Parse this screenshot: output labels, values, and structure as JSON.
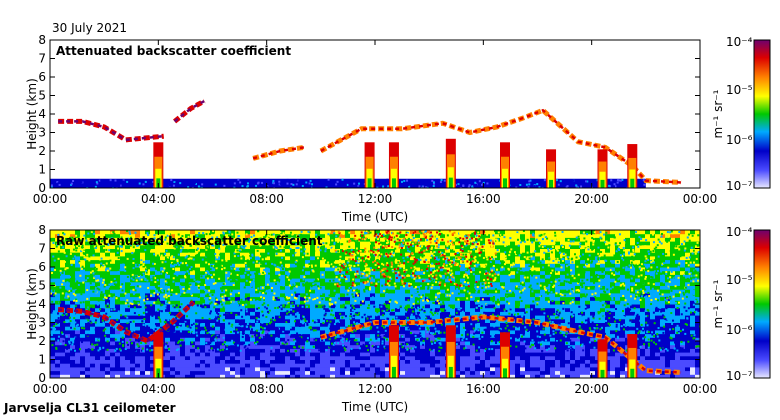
{
  "date": "30 July 2021",
  "footer": "Jarvselja CL31 ceilometer",
  "chart_data": [
    {
      "type": "heatmap",
      "title": "Attenuated backscatter coefficient",
      "xlabel": "Time (UTC)",
      "ylabel": "Height (km)",
      "xlim": [
        0,
        24
      ],
      "ylim": [
        0,
        8
      ],
      "xticks": [
        "00:00",
        "04:00",
        "08:00",
        "12:00",
        "16:00",
        "20:00",
        "00:00"
      ],
      "yticks": [
        "0",
        "1",
        "2",
        "3",
        "4",
        "5",
        "6",
        "7",
        "8"
      ],
      "colorbar": {
        "scale": "log",
        "range": [
          1e-07,
          0.0001
        ],
        "unit": "m⁻¹ sr⁻¹",
        "labels": [
          "10⁻⁴",
          "10⁻⁵",
          "10⁻⁶",
          "10⁻⁷"
        ]
      },
      "layers": [
        {
          "name": "boundary-layer",
          "kind": "band",
          "x": [
            0,
            22
          ],
          "height": [
            0,
            0.5
          ],
          "level": 2
        },
        {
          "name": "cloud-layer-early",
          "kind": "layer",
          "points": [
            [
              0.3,
              3.6
            ],
            [
              1.2,
              3.6
            ],
            [
              2.0,
              3.3
            ],
            [
              2.8,
              2.6
            ],
            [
              3.5,
              2.7
            ],
            [
              4.2,
              2.8
            ]
          ],
          "level": 8
        },
        {
          "name": "cloud-layer-midmorning",
          "kind": "layer",
          "points": [
            [
              4.6,
              3.6
            ],
            [
              5.2,
              4.3
            ],
            [
              5.7,
              4.7
            ]
          ],
          "level": 8
        },
        {
          "name": "cloud-layer-morning",
          "kind": "layer",
          "points": [
            [
              7.5,
              1.6
            ],
            [
              8.5,
              2.0
            ],
            [
              9.4,
              2.2
            ]
          ],
          "level": 7
        },
        {
          "name": "cloud-layer-afternoon",
          "kind": "layer",
          "points": [
            [
              10.0,
              2.0
            ],
            [
              11.5,
              3.2
            ],
            [
              13.0,
              3.2
            ],
            [
              14.5,
              3.5
            ],
            [
              15.5,
              3.0
            ],
            [
              16.5,
              3.3
            ],
            [
              17.5,
              3.8
            ],
            [
              18.2,
              4.2
            ],
            [
              19.5,
              2.5
            ],
            [
              20.5,
              2.2
            ],
            [
              21.5,
              1.2
            ],
            [
              22.0,
              0.4
            ],
            [
              23.3,
              0.3
            ]
          ],
          "level": 7
        },
        {
          "name": "precip-streak-1",
          "kind": "column",
          "x": 4.0,
          "top": 2.6,
          "level": 6
        },
        {
          "name": "precip-streak-2",
          "kind": "column",
          "x": 11.8,
          "top": 2.6,
          "level": 6
        },
        {
          "name": "precip-streak-3",
          "kind": "column",
          "x": 12.7,
          "top": 2.6,
          "level": 6
        },
        {
          "name": "precip-streak-4",
          "kind": "column",
          "x": 14.8,
          "top": 2.8,
          "level": 6
        },
        {
          "name": "precip-streak-5",
          "kind": "column",
          "x": 16.8,
          "top": 2.6,
          "level": 6
        },
        {
          "name": "precip-streak-6",
          "kind": "column",
          "x": 18.5,
          "top": 2.2,
          "level": 6
        },
        {
          "name": "precip-streak-7",
          "kind": "column",
          "x": 20.4,
          "top": 2.2,
          "level": 6
        },
        {
          "name": "precip-streak-8",
          "kind": "column",
          "x": 21.5,
          "top": 2.5,
          "level": 6
        }
      ]
    },
    {
      "type": "heatmap",
      "title": "Raw attenuated backscatter coefficient",
      "xlabel": "Time (UTC)",
      "ylabel": "Height (km)",
      "xlim": [
        0,
        24
      ],
      "ylim": [
        0,
        8
      ],
      "xticks": [
        "00:00",
        "04:00",
        "08:00",
        "12:00",
        "16:00",
        "20:00",
        "00:00"
      ],
      "yticks": [
        "0",
        "1",
        "2",
        "3",
        "4",
        "5",
        "6",
        "7",
        "8"
      ],
      "colorbar": {
        "scale": "log",
        "range": [
          1e-07,
          0.0001
        ],
        "unit": "m⁻¹ sr⁻¹",
        "labels": [
          "10⁻⁴",
          "10⁻⁵",
          "10⁻⁶",
          "10⁻⁷"
        ]
      },
      "background": {
        "low_level": 1,
        "high_level": 4
      },
      "layers": [
        {
          "name": "noise-upper",
          "kind": "band",
          "x": [
            0,
            24
          ],
          "height": [
            4.0,
            8.0
          ],
          "level": 4
        },
        {
          "name": "noise-mid",
          "kind": "band",
          "x": [
            0,
            24
          ],
          "height": [
            1.5,
            4.0
          ],
          "level": 3
        },
        {
          "name": "noisy-columns",
          "kind": "band",
          "x": [
            10.5,
            16.5
          ],
          "height": [
            5.0,
            8.0
          ],
          "level": 6
        },
        {
          "name": "cloud-layer-early",
          "kind": "layer",
          "points": [
            [
              0.3,
              3.7
            ],
            [
              1.2,
              3.6
            ],
            [
              2.0,
              3.3
            ],
            [
              2.8,
              2.5
            ],
            [
              3.6,
              2.0
            ],
            [
              4.5,
              3.0
            ],
            [
              5.3,
              4.1
            ]
          ],
          "level": 8
        },
        {
          "name": "cloud-layer-afternoon",
          "kind": "layer",
          "points": [
            [
              10.0,
              2.2
            ],
            [
              12.0,
              3.0
            ],
            [
              14.0,
              3.0
            ],
            [
              16.0,
              3.3
            ],
            [
              18.0,
              3.0
            ],
            [
              19.5,
              2.5
            ],
            [
              20.5,
              2.2
            ],
            [
              22.0,
              0.4
            ],
            [
              23.3,
              0.3
            ]
          ],
          "level": 7
        },
        {
          "name": "precip-streak-1",
          "kind": "column",
          "x": 4.0,
          "top": 2.6,
          "level": 6
        },
        {
          "name": "precip-streak-2",
          "kind": "column",
          "x": 12.7,
          "top": 3.0,
          "level": 6
        },
        {
          "name": "precip-streak-3",
          "kind": "column",
          "x": 14.8,
          "top": 3.0,
          "level": 6
        },
        {
          "name": "precip-streak-4",
          "kind": "column",
          "x": 16.8,
          "top": 2.6,
          "level": 6
        },
        {
          "name": "precip-streak-5",
          "kind": "column",
          "x": 20.4,
          "top": 2.2,
          "level": 6
        },
        {
          "name": "precip-streak-6",
          "kind": "column",
          "x": 21.5,
          "top": 2.5,
          "level": 6
        }
      ]
    }
  ]
}
